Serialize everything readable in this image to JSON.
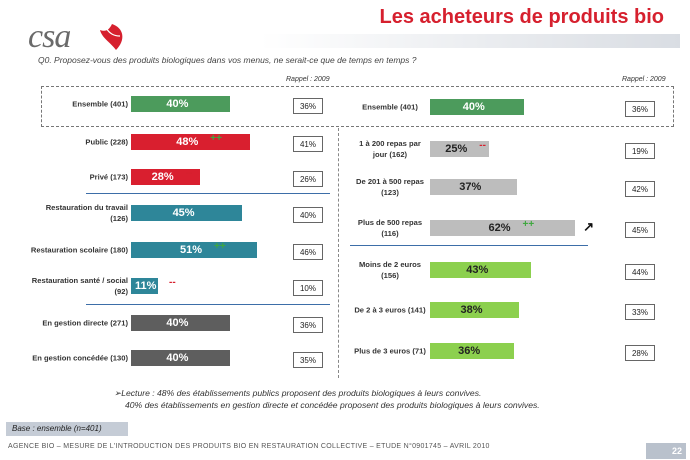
{
  "header": {
    "logo_text": "csa",
    "title": "Les acheteurs de produits bio"
  },
  "question": "Q0. Proposez-vous des produits biologiques dans vos menus, ne serait-ce que de temps en temps ?",
  "rappel_left": "Rappel : 2009",
  "rappel_right": "Rappel : 2009",
  "colors": {
    "green": "#4c9b5c",
    "red": "#d91f2f",
    "teal": "#2e8699",
    "dark": "#5e5e5e",
    "grey": "#bdbdbd",
    "lightgreen": "#8cd04e",
    "title_red": "#d6202e"
  },
  "chart_data": [
    {
      "type": "bar",
      "orientation": "horizontal",
      "panel": "left",
      "unit": "%",
      "categories": [
        "Ensemble (401)",
        "Public (228)",
        "Privé (173)",
        "Restauration du travail (126)",
        "Restauration scolaire (180)",
        "Restauration santé / social (92)",
        "En gestion directe (271)",
        "En gestion concédée (130)"
      ],
      "values": [
        40,
        48,
        28,
        45,
        51,
        11,
        40,
        40
      ],
      "value_labels": [
        "40%",
        "48%",
        "28%",
        "45%",
        "51%",
        "11%",
        "40%",
        "40%"
      ],
      "significance": [
        "",
        "++",
        "--",
        "",
        "++",
        "--",
        "",
        ""
      ],
      "rappel_2009": [
        "36%",
        "41%",
        "26%",
        "40%",
        "46%",
        "10%",
        "36%",
        "35%"
      ],
      "bar_colors": [
        "#4c9b5c",
        "#d91f2f",
        "#d91f2f",
        "#2e8699",
        "#2e8699",
        "#2e8699",
        "#5e5e5e",
        "#5e5e5e"
      ]
    },
    {
      "type": "bar",
      "orientation": "horizontal",
      "panel": "right",
      "unit": "%",
      "categories": [
        "Ensemble (401)",
        "1 à 200 repas par jour (162)",
        "De 201 à 500 repas (123)",
        "Plus de 500 repas (116)",
        "Moins de 2 euros (156)",
        "De 2 à 3 euros (141)",
        "Plus de 3 euros (71)"
      ],
      "values": [
        40,
        25,
        37,
        62,
        43,
        38,
        36
      ],
      "value_labels": [
        "40%",
        "25%",
        "37%",
        "62%",
        "43%",
        "38%",
        "36%"
      ],
      "significance": [
        "",
        "--",
        "",
        "++",
        "",
        "",
        ""
      ],
      "trend_arrow": [
        "",
        "",
        "",
        "↗",
        "",
        "",
        ""
      ],
      "rappel_2009": [
        "36%",
        "19%",
        "42%",
        "45%",
        "44%",
        "33%",
        "28%"
      ],
      "bar_colors": [
        "#4c9b5c",
        "#bdbdbd",
        "#bdbdbd",
        "#bdbdbd",
        "#8cd04e",
        "#8cd04e",
        "#8cd04e"
      ]
    }
  ],
  "lecture": {
    "line1": "Lecture : 48% des établissements publics proposent des produits biologiques à leurs convives.",
    "line2": "40% des établissements en gestion directe et concédée proposent des produits biologiques à leurs convives."
  },
  "base": "Base : ensemble (n=401)",
  "footer": "AGENCE BIO – MESURE DE L'INTRODUCTION DES PRODUITS BIO EN RESTAURATION COLLECTIVE – ETUDE N°0901745 – AVRIL 2010",
  "page_number": "22"
}
